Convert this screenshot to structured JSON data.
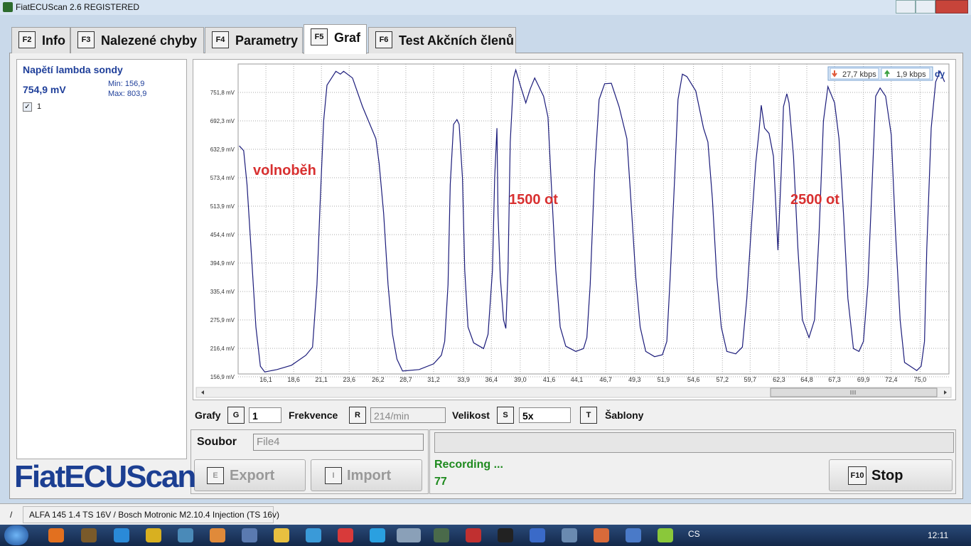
{
  "window": {
    "title": "FiatECUScan 2.6 REGISTERED"
  },
  "tabs": [
    {
      "key": "F2",
      "label": "Info"
    },
    {
      "key": "F3",
      "label": "Nalezené chyby"
    },
    {
      "key": "F4",
      "label": "Parametry"
    },
    {
      "key": "F5",
      "label": "Graf"
    },
    {
      "key": "F6",
      "label": "Test Akčních členů"
    }
  ],
  "sensor_panel": {
    "name": "Napětí lambda sondy",
    "value": "754,9 mV",
    "min": "Min: 156,9",
    "max": "Max: 803,9"
  },
  "chart_data": {
    "type": "line",
    "grid": true,
    "annotations": [
      "volnoběh",
      "1500 ot",
      "2500 ot"
    ],
    "xlim": [
      13.6,
      77.6
    ],
    "ylim": [
      156.9,
      811.3
    ],
    "xticks": [
      {
        "value": 16.1,
        "label": "16,1"
      },
      {
        "value": 18.6,
        "label": "18,6"
      },
      {
        "value": 21.1,
        "label": "21,1"
      },
      {
        "value": 23.6,
        "label": "23,6"
      },
      {
        "value": 26.2,
        "label": "26,2"
      },
      {
        "value": 28.7,
        "label": "28,7"
      },
      {
        "value": 31.2,
        "label": "31,2"
      },
      {
        "value": 33.9,
        "label": "33,9"
      },
      {
        "value": 36.4,
        "label": "36,4"
      },
      {
        "value": 39.0,
        "label": "39,0"
      },
      {
        "value": 41.6,
        "label": "41,6"
      },
      {
        "value": 44.1,
        "label": "44,1"
      },
      {
        "value": 46.7,
        "label": "46,7"
      },
      {
        "value": 49.3,
        "label": "49,3"
      },
      {
        "value": 51.9,
        "label": "51,9"
      },
      {
        "value": 54.6,
        "label": "54,6"
      },
      {
        "value": 57.2,
        "label": "57,2"
      },
      {
        "value": 59.7,
        "label": "59,7"
      },
      {
        "value": 62.3,
        "label": "62,3"
      },
      {
        "value": 64.8,
        "label": "64,8"
      },
      {
        "value": 67.3,
        "label": "67,3"
      },
      {
        "value": 69.9,
        "label": "69,9"
      },
      {
        "value": 72.4,
        "label": "72,4"
      },
      {
        "value": 75.0,
        "label": "75,0"
      }
    ],
    "yticks": [
      {
        "value": 156.9,
        "label": "156,9 mV"
      },
      {
        "value": 216.4,
        "label": "216,4 mV"
      },
      {
        "value": 275.9,
        "label": "275,9 mV"
      },
      {
        "value": 335.4,
        "label": "335,4 mV"
      },
      {
        "value": 394.9,
        "label": "394,9 mV"
      },
      {
        "value": 454.4,
        "label": "454,4 mV"
      },
      {
        "value": 513.9,
        "label": "513,9 mV"
      },
      {
        "value": 573.4,
        "label": "573,4 mV"
      },
      {
        "value": 632.9,
        "label": "632,9 mV"
      },
      {
        "value": 692.3,
        "label": "692,3 mV"
      },
      {
        "value": 751.8,
        "label": "751,8 mV"
      }
    ],
    "x": [
      13.7,
      14.1,
      14.4,
      14.8,
      15.2,
      15.6,
      16.0,
      17.1,
      18.4,
      19.7,
      20.3,
      20.7,
      21.0,
      21.3,
      21.6,
      22.4,
      22.8,
      23.1,
      23.9,
      24.8,
      26.0,
      26.3,
      26.7,
      27.1,
      27.5,
      27.9,
      28.4,
      29.9,
      31.2,
      31.9,
      32.2,
      32.5,
      32.7,
      33.0,
      33.3,
      33.5,
      33.8,
      34.0,
      34.3,
      34.8,
      35.7,
      36.1,
      36.5,
      36.7,
      36.9,
      37.0,
      37.2,
      37.5,
      37.7,
      37.9,
      38.1,
      38.4,
      38.6,
      39.0,
      39.5,
      39.9,
      40.3,
      41.1,
      41.5,
      41.8,
      42.2,
      42.6,
      43.1,
      44.0,
      44.7,
      45.0,
      45.3,
      45.7,
      46.1,
      46.6,
      47.2,
      47.9,
      48.6,
      49.0,
      49.4,
      49.8,
      50.3,
      51.1,
      51.8,
      52.2,
      52.5,
      52.9,
      53.2,
      53.6,
      54.0,
      54.8,
      55.5,
      55.9,
      56.3,
      56.7,
      57.1,
      57.6,
      58.4,
      59.0,
      59.4,
      59.8,
      60.2,
      60.5,
      60.7,
      61.0,
      61.4,
      61.8,
      62.2,
      62.5,
      62.7,
      63.0,
      63.2,
      63.6,
      64.0,
      64.4,
      65.0,
      65.5,
      65.9,
      66.3,
      66.7,
      67.3,
      67.7,
      68.1,
      68.5,
      69.0,
      69.5,
      69.9,
      70.3,
      70.7,
      71.0,
      71.4,
      71.9,
      72.4,
      72.8,
      73.2,
      73.6,
      74.7,
      75.1,
      75.4,
      75.6,
      76.0,
      76.4,
      76.8,
      77.2
    ],
    "series": [
      {
        "name": "1",
        "color": "#1b1b7a",
        "values": [
          640,
          630,
          559,
          410,
          261,
          179,
          167,
          172,
          181,
          202,
          219,
          350,
          529,
          692,
          767,
          796,
          790,
          796,
          782,
          722,
          655,
          603,
          499,
          350,
          246,
          194,
          169,
          172,
          184,
          202,
          231,
          350,
          559,
          685,
          695,
          685,
          573,
          380,
          261,
          228,
          216,
          246,
          380,
          573,
          677,
          499,
          365,
          276,
          258,
          380,
          648,
          782,
          799,
          767,
          730,
          759,
          782,
          744,
          700,
          559,
          380,
          261,
          221,
          210,
          216,
          239,
          350,
          588,
          737,
          770,
          771,
          722,
          655,
          514,
          365,
          261,
          210,
          199,
          203,
          231,
          365,
          573,
          737,
          790,
          785,
          755,
          677,
          648,
          529,
          365,
          261,
          210,
          205,
          219,
          321,
          469,
          603,
          670,
          725,
          677,
          666,
          618,
          422,
          588,
          722,
          749,
          730,
          618,
          425,
          276,
          239,
          276,
          454,
          692,
          764,
          730,
          655,
          499,
          321,
          216,
          210,
          231,
          350,
          573,
          744,
          761,
          744,
          663,
          454,
          276,
          187,
          170,
          179,
          231,
          425,
          677,
          774,
          796,
          774
        ]
      }
    ]
  },
  "network": {
    "down": "27,7 kbps",
    "up": "1,9 kbps",
    "partial": "dy"
  },
  "controls": {
    "grafy": {
      "label": "Grafy",
      "key": "G",
      "value": "1"
    },
    "frekvence": {
      "label": "Frekvence",
      "key": "R",
      "value": "214/min"
    },
    "velikost": {
      "label": "Velikost",
      "key": "S",
      "value": "5x"
    },
    "sablony": {
      "key": "T",
      "label": "Šablony"
    }
  },
  "file_panel": {
    "label": "Soubor",
    "value": "File4",
    "export": {
      "key": "E",
      "label": "Export"
    },
    "import": {
      "key": "I",
      "label": "Import"
    }
  },
  "status_panel": {
    "status": "Recording ...",
    "count": "77",
    "stop": {
      "key": "F10",
      "label": "Stop"
    }
  },
  "logo": "FiatECUScan",
  "statusbar": {
    "left": "/",
    "vehicle": "ALFA 145 1.4 TS 16V / Bosch Motronic M2.10.4 Injection (TS 16v)"
  },
  "taskbar": {
    "lang": "CS",
    "time": "12:11"
  }
}
